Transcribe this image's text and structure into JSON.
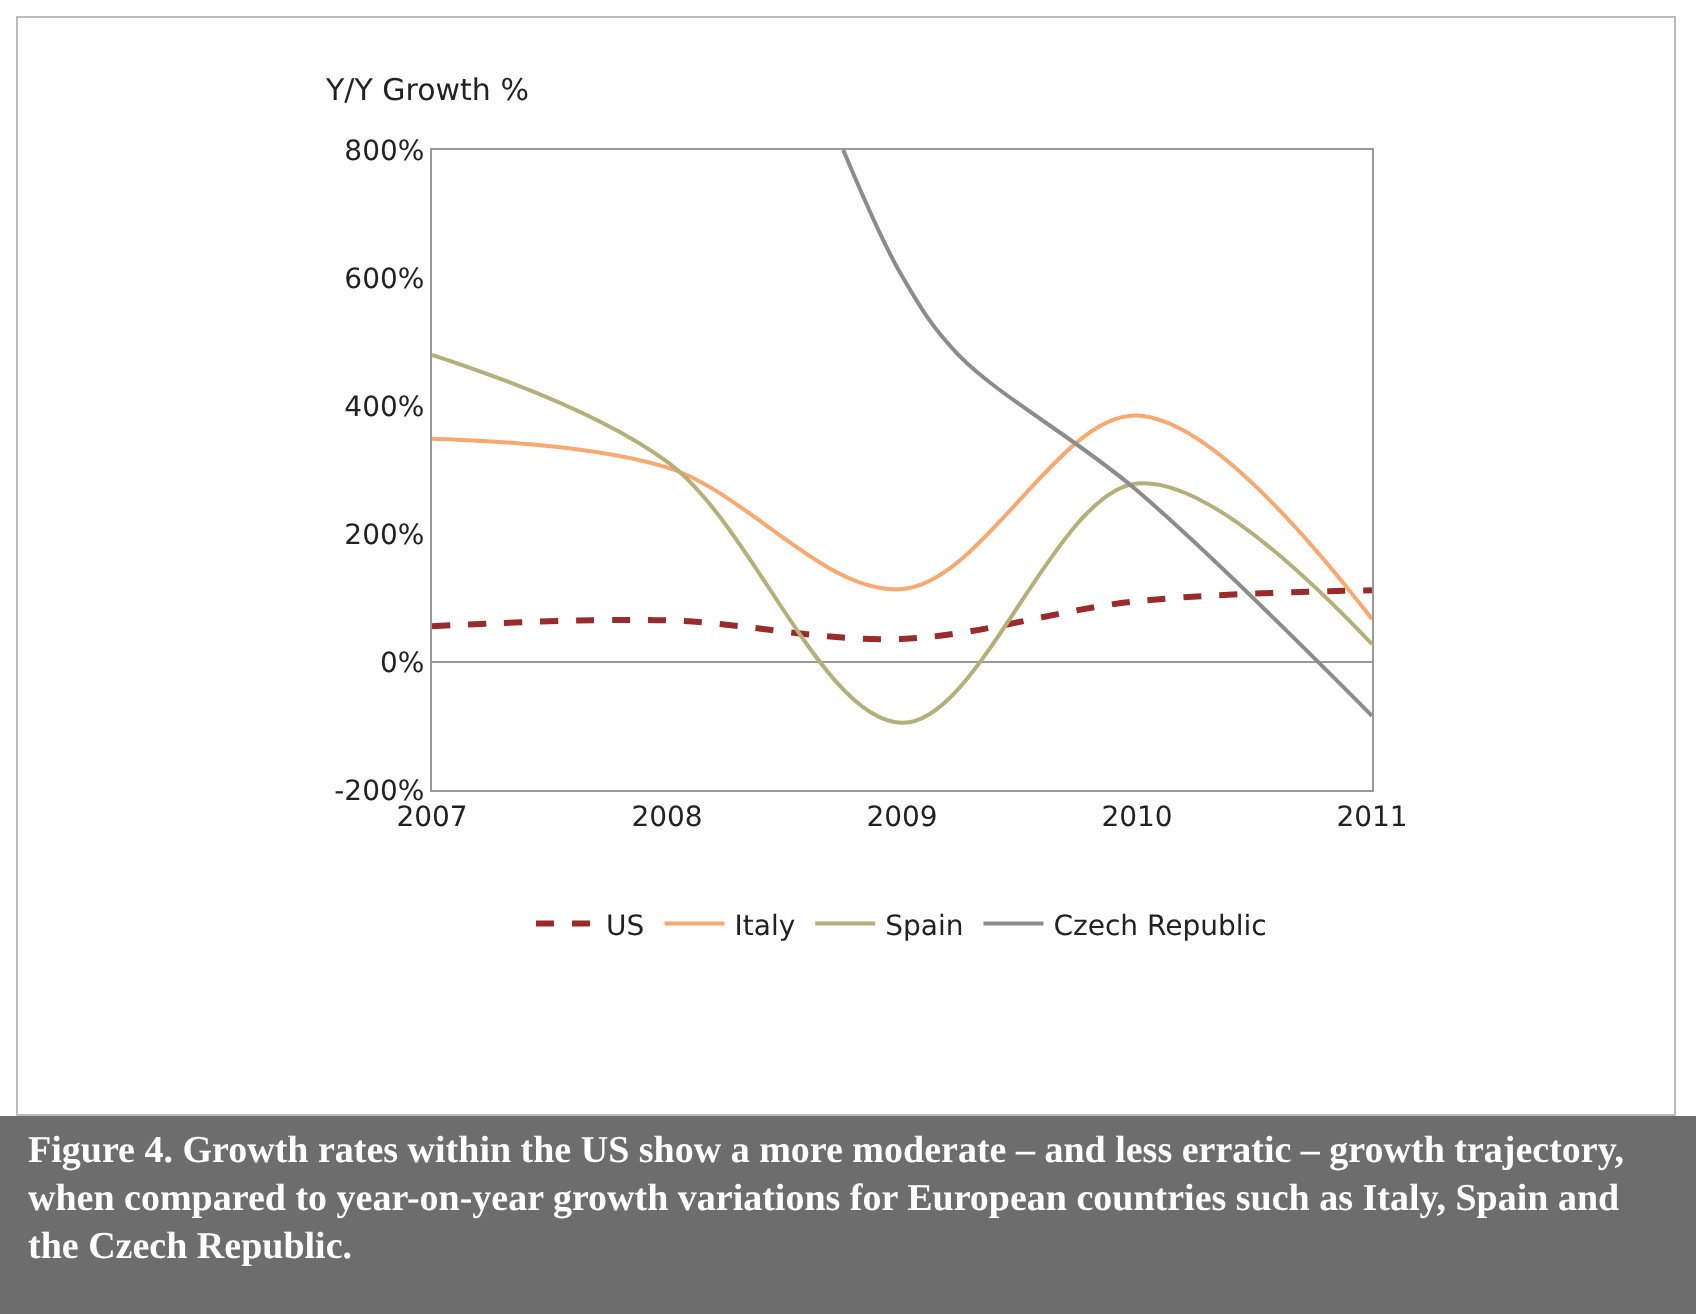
{
  "chart_data": {
    "type": "line",
    "ylabel": "Y/Y Growth %",
    "x": [
      2007,
      2008,
      2009,
      2010,
      2011
    ],
    "xlim": [
      2007,
      2011
    ],
    "xticks": [
      2007,
      2008,
      2009,
      2010,
      2011
    ],
    "ylim": [
      -200,
      800
    ],
    "yticks": [
      {
        "value": -200,
        "label": "-200%"
      },
      {
        "value": 0,
        "label": "0%"
      },
      {
        "value": 200,
        "label": "200%"
      },
      {
        "value": 400,
        "label": "400%"
      },
      {
        "value": 600,
        "label": "600%"
      },
      {
        "value": 800,
        "label": "800%"
      }
    ],
    "grid": false,
    "legend": "bottom",
    "marker": "none",
    "ref_lines": [
      {
        "axis": "y",
        "value": 0,
        "color": "#999999"
      }
    ],
    "series": [
      {
        "name": "US",
        "color": "#9b2a2a",
        "line_style": "dashed",
        "values": [
          56,
          65,
          36,
          95,
          112
        ]
      },
      {
        "name": "Italy",
        "color": "#f9a870",
        "line_style": "solid",
        "values": [
          349,
          304,
          114,
          385,
          67
        ]
      },
      {
        "name": "Spain",
        "color": "#b5b07a",
        "line_style": "solid",
        "values": [
          480,
          313,
          -95,
          279,
          28
        ]
      },
      {
        "name": "Czech Republic",
        "color": "#8c8c8c",
        "line_style": "solid",
        "x": [
          2008.75,
          2009,
          2009.24,
          2010,
          2011
        ],
        "values": [
          800,
          603,
          480,
          268,
          -84
        ]
      }
    ],
    "annotations": [
      "Figure 4. Growth rates within the US show a more moderate – and less erratic – growth trajectory, when compared to year-on-year growth variations for European countries such as Italy, Spain and the Czech Republic."
    ]
  }
}
